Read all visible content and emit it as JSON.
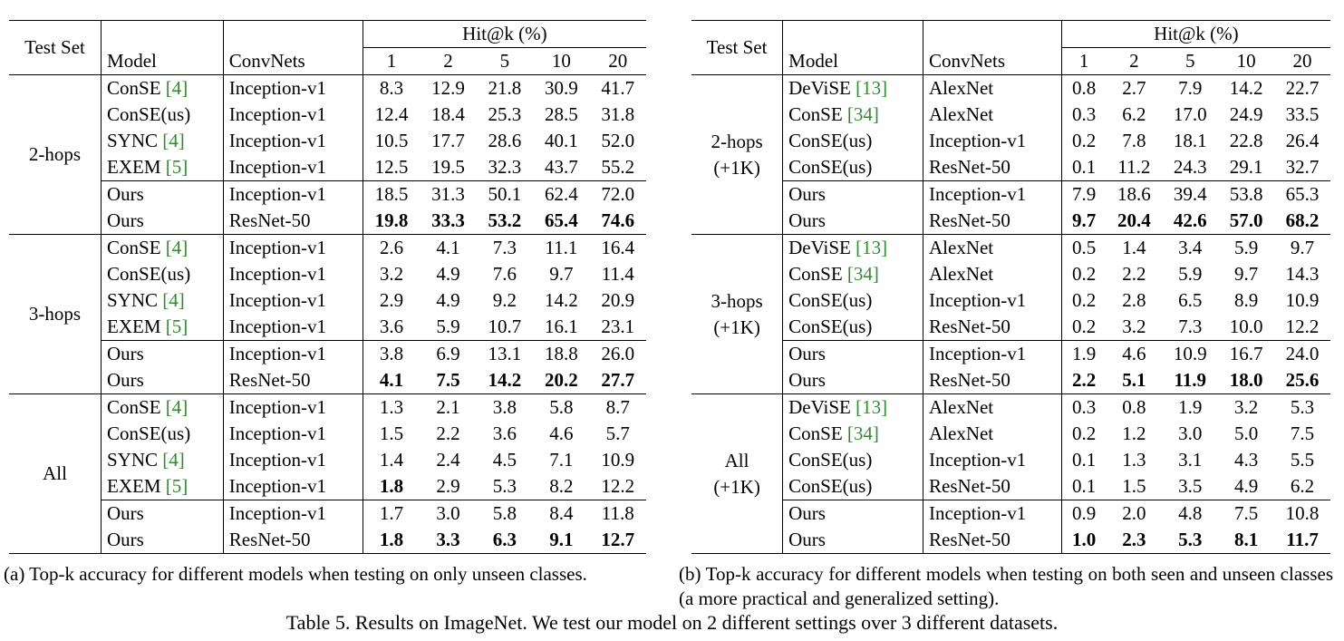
{
  "header": {
    "test_set": "Test Set",
    "model": "Model",
    "convnets": "ConvNets",
    "hit_k": "Hit@k (%)",
    "k_values": [
      "1",
      "2",
      "5",
      "10",
      "20"
    ]
  },
  "panel_a": {
    "groups": [
      {
        "test_set": [
          "2-hops"
        ],
        "rows": [
          {
            "model": "ConSE",
            "cite": "[4]",
            "net": "Inception-v1",
            "vals": [
              "8.3",
              "12.9",
              "21.8",
              "30.9",
              "41.7"
            ],
            "bold": []
          },
          {
            "model": "ConSE(us)",
            "cite": "",
            "net": "Inception-v1",
            "vals": [
              "12.4",
              "18.4",
              "25.3",
              "28.5",
              "31.8"
            ],
            "bold": []
          },
          {
            "model": "SYNC",
            "cite": "[4]",
            "net": "Inception-v1",
            "vals": [
              "10.5",
              "17.7",
              "28.6",
              "40.1",
              "52.0"
            ],
            "bold": []
          },
          {
            "model": "EXEM",
            "cite": "[5]",
            "net": "Inception-v1",
            "vals": [
              "12.5",
              "19.5",
              "32.3",
              "43.7",
              "55.2"
            ],
            "bold": []
          },
          {
            "model": "Ours",
            "cite": "",
            "net": "Inception-v1",
            "vals": [
              "18.5",
              "31.3",
              "50.1",
              "62.4",
              "72.0"
            ],
            "bold": []
          },
          {
            "model": "Ours",
            "cite": "",
            "net": "ResNet-50",
            "vals": [
              "19.8",
              "33.3",
              "53.2",
              "65.4",
              "74.6"
            ],
            "bold": [
              0,
              1,
              2,
              3,
              4
            ]
          }
        ]
      },
      {
        "test_set": [
          "3-hops"
        ],
        "rows": [
          {
            "model": "ConSE",
            "cite": "[4]",
            "net": "Inception-v1",
            "vals": [
              "2.6",
              "4.1",
              "7.3",
              "11.1",
              "16.4"
            ],
            "bold": []
          },
          {
            "model": "ConSE(us)",
            "cite": "",
            "net": "Inception-v1",
            "vals": [
              "3.2",
              "4.9",
              "7.6",
              "9.7",
              "11.4"
            ],
            "bold": []
          },
          {
            "model": "SYNC",
            "cite": "[4]",
            "net": "Inception-v1",
            "vals": [
              "2.9",
              "4.9",
              "9.2",
              "14.2",
              "20.9"
            ],
            "bold": []
          },
          {
            "model": "EXEM",
            "cite": "[5]",
            "net": "Inception-v1",
            "vals": [
              "3.6",
              "5.9",
              "10.7",
              "16.1",
              "23.1"
            ],
            "bold": []
          },
          {
            "model": "Ours",
            "cite": "",
            "net": "Inception-v1",
            "vals": [
              "3.8",
              "6.9",
              "13.1",
              "18.8",
              "26.0"
            ],
            "bold": []
          },
          {
            "model": "Ours",
            "cite": "",
            "net": "ResNet-50",
            "vals": [
              "4.1",
              "7.5",
              "14.2",
              "20.2",
              "27.7"
            ],
            "bold": [
              0,
              1,
              2,
              3,
              4
            ]
          }
        ]
      },
      {
        "test_set": [
          "All"
        ],
        "rows": [
          {
            "model": "ConSE",
            "cite": "[4]",
            "net": "Inception-v1",
            "vals": [
              "1.3",
              "2.1",
              "3.8",
              "5.8",
              "8.7"
            ],
            "bold": []
          },
          {
            "model": "ConSE(us)",
            "cite": "",
            "net": "Inception-v1",
            "vals": [
              "1.5",
              "2.2",
              "3.6",
              "4.6",
              "5.7"
            ],
            "bold": []
          },
          {
            "model": "SYNC",
            "cite": "[4]",
            "net": "Inception-v1",
            "vals": [
              "1.4",
              "2.4",
              "4.5",
              "7.1",
              "10.9"
            ],
            "bold": []
          },
          {
            "model": "EXEM",
            "cite": "[5]",
            "net": "Inception-v1",
            "vals": [
              "1.8",
              "2.9",
              "5.3",
              "8.2",
              "12.2"
            ],
            "bold": [
              0
            ]
          },
          {
            "model": "Ours",
            "cite": "",
            "net": "Inception-v1",
            "vals": [
              "1.7",
              "3.0",
              "5.8",
              "8.4",
              "11.8"
            ],
            "bold": []
          },
          {
            "model": "Ours",
            "cite": "",
            "net": "ResNet-50",
            "vals": [
              "1.8",
              "3.3",
              "6.3",
              "9.1",
              "12.7"
            ],
            "bold": [
              0,
              1,
              2,
              3,
              4
            ]
          }
        ]
      }
    ],
    "caption": "(a) Top-k accuracy for different models when testing on only unseen classes."
  },
  "panel_b": {
    "groups": [
      {
        "test_set": [
          "2-hops",
          "(+1K)"
        ],
        "rows": [
          {
            "model": "DeViSE",
            "cite": "[13]",
            "net": "AlexNet",
            "vals": [
              "0.8",
              "2.7",
              "7.9",
              "14.2",
              "22.7"
            ],
            "bold": []
          },
          {
            "model": "ConSE",
            "cite": "[34]",
            "net": "AlexNet",
            "vals": [
              "0.3",
              "6.2",
              "17.0",
              "24.9",
              "33.5"
            ],
            "bold": []
          },
          {
            "model": "ConSE(us)",
            "cite": "",
            "net": "Inception-v1",
            "vals": [
              "0.2",
              "7.8",
              "18.1",
              "22.8",
              "26.4"
            ],
            "bold": []
          },
          {
            "model": "ConSE(us)",
            "cite": "",
            "net": "ResNet-50",
            "vals": [
              "0.1",
              "11.2",
              "24.3",
              "29.1",
              "32.7"
            ],
            "bold": []
          },
          {
            "model": "Ours",
            "cite": "",
            "net": "Inception-v1",
            "vals": [
              "7.9",
              "18.6",
              "39.4",
              "53.8",
              "65.3"
            ],
            "bold": []
          },
          {
            "model": "Ours",
            "cite": "",
            "net": "ResNet-50",
            "vals": [
              "9.7",
              "20.4",
              "42.6",
              "57.0",
              "68.2"
            ],
            "bold": [
              0,
              1,
              2,
              3,
              4
            ]
          }
        ]
      },
      {
        "test_set": [
          "3-hops",
          "(+1K)"
        ],
        "rows": [
          {
            "model": "DeViSE",
            "cite": "[13]",
            "net": "AlexNet",
            "vals": [
              "0.5",
              "1.4",
              "3.4",
              "5.9",
              "9.7"
            ],
            "bold": []
          },
          {
            "model": "ConSE",
            "cite": "[34]",
            "net": "AlexNet",
            "vals": [
              "0.2",
              "2.2",
              "5.9",
              "9.7",
              "14.3"
            ],
            "bold": []
          },
          {
            "model": "ConSE(us)",
            "cite": "",
            "net": "Inception-v1",
            "vals": [
              "0.2",
              "2.8",
              "6.5",
              "8.9",
              "10.9"
            ],
            "bold": []
          },
          {
            "model": "ConSE(us)",
            "cite": "",
            "net": "ResNet-50",
            "vals": [
              "0.2",
              "3.2",
              "7.3",
              "10.0",
              "12.2"
            ],
            "bold": []
          },
          {
            "model": "Ours",
            "cite": "",
            "net": "Inception-v1",
            "vals": [
              "1.9",
              "4.6",
              "10.9",
              "16.7",
              "24.0"
            ],
            "bold": []
          },
          {
            "model": "Ours",
            "cite": "",
            "net": "ResNet-50",
            "vals": [
              "2.2",
              "5.1",
              "11.9",
              "18.0",
              "25.6"
            ],
            "bold": [
              0,
              1,
              2,
              3,
              4
            ]
          }
        ]
      },
      {
        "test_set": [
          "All",
          "(+1K)"
        ],
        "rows": [
          {
            "model": "DeViSE",
            "cite": "[13]",
            "net": "AlexNet",
            "vals": [
              "0.3",
              "0.8",
              "1.9",
              "3.2",
              "5.3"
            ],
            "bold": []
          },
          {
            "model": "ConSE",
            "cite": "[34]",
            "net": "AlexNet",
            "vals": [
              "0.2",
              "1.2",
              "3.0",
              "5.0",
              "7.5"
            ],
            "bold": []
          },
          {
            "model": "ConSE(us)",
            "cite": "",
            "net": "Inception-v1",
            "vals": [
              "0.1",
              "1.3",
              "3.1",
              "4.3",
              "5.5"
            ],
            "bold": []
          },
          {
            "model": "ConSE(us)",
            "cite": "",
            "net": "ResNet-50",
            "vals": [
              "0.1",
              "1.5",
              "3.5",
              "4.9",
              "6.2"
            ],
            "bold": []
          },
          {
            "model": "Ours",
            "cite": "",
            "net": "Inception-v1",
            "vals": [
              "0.9",
              "2.0",
              "4.8",
              "7.5",
              "10.8"
            ],
            "bold": []
          },
          {
            "model": "Ours",
            "cite": "",
            "net": "ResNet-50",
            "vals": [
              "1.0",
              "2.3",
              "5.3",
              "8.1",
              "11.7"
            ],
            "bold": [
              0,
              1,
              2,
              3,
              4
            ]
          }
        ]
      }
    ],
    "caption": "(b) Top-k accuracy for different models when testing on both seen and unseen classes (a more practical and generalized setting)."
  },
  "main_caption": "Table 5. Results on ImageNet. We test our model on 2 different settings over 3 different datasets."
}
